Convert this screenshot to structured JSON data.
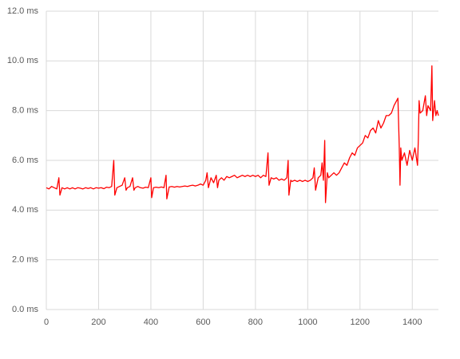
{
  "chart_data": {
    "type": "line",
    "x": [
      0,
      10,
      20,
      30,
      40,
      48,
      52,
      60,
      70,
      80,
      90,
      100,
      110,
      120,
      130,
      140,
      150,
      160,
      170,
      180,
      190,
      200,
      210,
      220,
      230,
      240,
      250,
      258,
      262,
      270,
      280,
      290,
      300,
      305,
      310,
      320,
      330,
      335,
      340,
      350,
      360,
      370,
      380,
      390,
      400,
      403,
      410,
      420,
      430,
      440,
      450,
      458,
      461,
      470,
      480,
      490,
      500,
      510,
      520,
      530,
      540,
      550,
      560,
      570,
      580,
      590,
      600,
      610,
      615,
      620,
      630,
      640,
      650,
      655,
      660,
      670,
      680,
      690,
      700,
      710,
      720,
      730,
      740,
      750,
      760,
      770,
      780,
      790,
      800,
      810,
      820,
      830,
      840,
      848,
      852,
      860,
      870,
      880,
      890,
      900,
      910,
      920,
      925,
      928,
      935,
      940,
      950,
      960,
      970,
      980,
      990,
      1000,
      1010,
      1020,
      1025,
      1030,
      1040,
      1050,
      1055,
      1060,
      1065,
      1068,
      1075,
      1080,
      1090,
      1100,
      1110,
      1120,
      1130,
      1140,
      1150,
      1160,
      1170,
      1180,
      1190,
      1200,
      1210,
      1220,
      1230,
      1240,
      1250,
      1260,
      1270,
      1280,
      1290,
      1300,
      1310,
      1320,
      1330,
      1340,
      1345,
      1350,
      1353,
      1356,
      1360,
      1370,
      1380,
      1390,
      1400,
      1410,
      1420,
      1423,
      1426,
      1430,
      1440,
      1450,
      1455,
      1460,
      1470,
      1475,
      1478,
      1485,
      1490,
      1495,
      1500
    ],
    "series": [
      {
        "color": "#ff0000",
        "values": [
          4.9,
          4.85,
          4.95,
          4.9,
          4.85,
          5.3,
          4.6,
          4.9,
          4.85,
          4.9,
          4.85,
          4.9,
          4.85,
          4.9,
          4.88,
          4.85,
          4.9,
          4.87,
          4.9,
          4.85,
          4.9,
          4.88,
          4.9,
          4.86,
          4.92,
          4.9,
          4.95,
          6.0,
          4.6,
          4.9,
          4.95,
          5.0,
          5.3,
          4.8,
          4.9,
          4.95,
          5.3,
          4.8,
          4.9,
          4.95,
          4.9,
          4.88,
          4.92,
          4.9,
          5.3,
          4.5,
          4.9,
          4.92,
          4.9,
          4.93,
          4.9,
          5.4,
          4.45,
          4.93,
          4.95,
          4.92,
          4.95,
          4.93,
          4.95,
          4.97,
          4.95,
          4.98,
          5.0,
          4.97,
          5.0,
          5.05,
          5.0,
          5.2,
          5.5,
          4.9,
          5.3,
          5.1,
          5.4,
          4.9,
          5.2,
          5.3,
          5.2,
          5.35,
          5.3,
          5.35,
          5.4,
          5.3,
          5.35,
          5.4,
          5.35,
          5.4,
          5.35,
          5.4,
          5.35,
          5.4,
          5.3,
          5.4,
          5.35,
          6.3,
          5.0,
          5.3,
          5.25,
          5.3,
          5.2,
          5.25,
          5.2,
          5.3,
          6.0,
          4.6,
          5.2,
          5.15,
          5.2,
          5.15,
          5.2,
          5.15,
          5.2,
          5.15,
          5.2,
          5.3,
          5.7,
          4.8,
          5.3,
          5.4,
          5.9,
          5.2,
          6.8,
          4.3,
          5.5,
          5.3,
          5.4,
          5.5,
          5.4,
          5.5,
          5.7,
          5.9,
          5.8,
          6.1,
          6.3,
          6.2,
          6.5,
          6.6,
          6.7,
          7.0,
          6.9,
          7.2,
          7.3,
          7.1,
          7.6,
          7.3,
          7.5,
          7.8,
          7.8,
          7.9,
          8.2,
          8.4,
          8.5,
          6.6,
          5.0,
          6.5,
          6.0,
          6.3,
          5.8,
          6.4,
          6.0,
          6.5,
          5.8,
          6.8,
          8.4,
          7.9,
          8.0,
          8.6,
          7.8,
          8.2,
          8.0,
          9.8,
          7.6,
          8.4,
          7.8,
          8.0,
          7.8
        ]
      }
    ],
    "xlim": [
      0,
      1500
    ],
    "xticks": [
      0,
      200,
      400,
      600,
      800,
      1000,
      1200,
      1400
    ],
    "ylim": [
      0,
      12
    ],
    "yticks": [
      {
        "value": 0,
        "label": "0.0 ms"
      },
      {
        "value": 2,
        "label": "2.0 ms"
      },
      {
        "value": 4,
        "label": "4.0 ms"
      },
      {
        "value": 6,
        "label": "6.0 ms"
      },
      {
        "value": 8,
        "label": "8.0 ms"
      },
      {
        "value": 10,
        "label": "10.0 ms"
      },
      {
        "value": 12,
        "label": "12.0 ms"
      }
    ],
    "grid": true
  }
}
